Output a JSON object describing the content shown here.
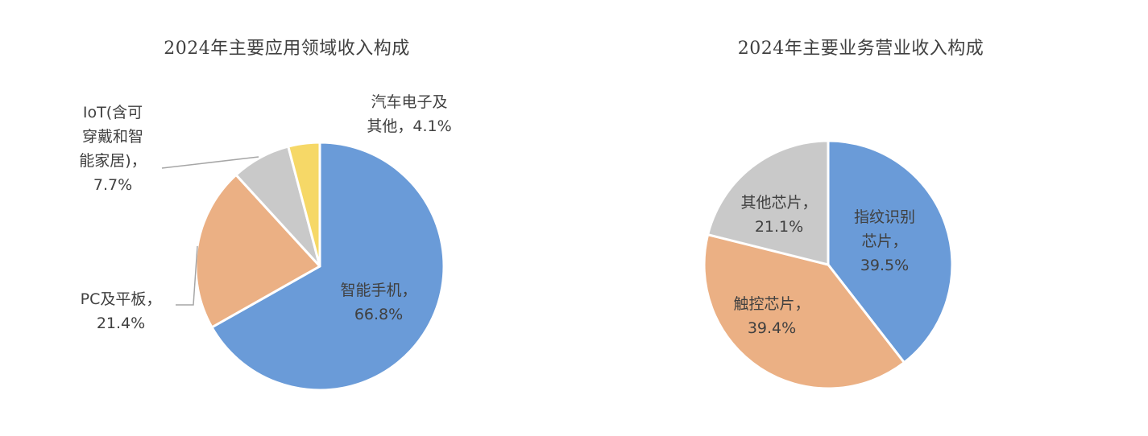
{
  "chart_data": [
    {
      "type": "pie",
      "title": "2024年主要应用领域收入构成",
      "slices": [
        {
          "label": "智能手机",
          "value": 66.8,
          "value_text": "66.8%",
          "color": "#6A9BD8"
        },
        {
          "label": "PC及平板",
          "value": 21.4,
          "value_text": "21.4%",
          "color": "#EBB084"
        },
        {
          "label": "IoT(含可穿戴和智能家居)",
          "value": 7.7,
          "value_text": "7.7%",
          "color": "#C9C9C9"
        },
        {
          "label": "汽车电子及其他",
          "value": 4.1,
          "value_text": "4.1%",
          "color": "#F6D867"
        }
      ]
    },
    {
      "type": "pie",
      "title": "2024年主要业务营业收入构成",
      "slices": [
        {
          "label": "指纹识别芯片",
          "value": 39.5,
          "value_text": "39.5%",
          "color": "#6A9BD8"
        },
        {
          "label": "触控芯片",
          "value": 39.4,
          "value_text": "39.4%",
          "color": "#EBB084"
        },
        {
          "label": "其他芯片",
          "value": 21.1,
          "value_text": "21.1%",
          "color": "#C9C9C9"
        }
      ]
    }
  ],
  "label_lines": {
    "left": [
      [
        "智能手机，",
        "66.8%"
      ],
      [
        "PC及平板，",
        "21.4%"
      ],
      [
        "IoT(含可",
        "穿戴和智",
        "能家居)，",
        "7.7%"
      ],
      [
        "汽车电子及",
        "其他，4.1%"
      ]
    ],
    "right": [
      [
        "指纹识别",
        "芯片，",
        "39.5%"
      ],
      [
        "触控芯片，",
        "39.4%"
      ],
      [
        "其他芯片，",
        "21.1%"
      ]
    ]
  },
  "leader_color": "#A6A6A6"
}
